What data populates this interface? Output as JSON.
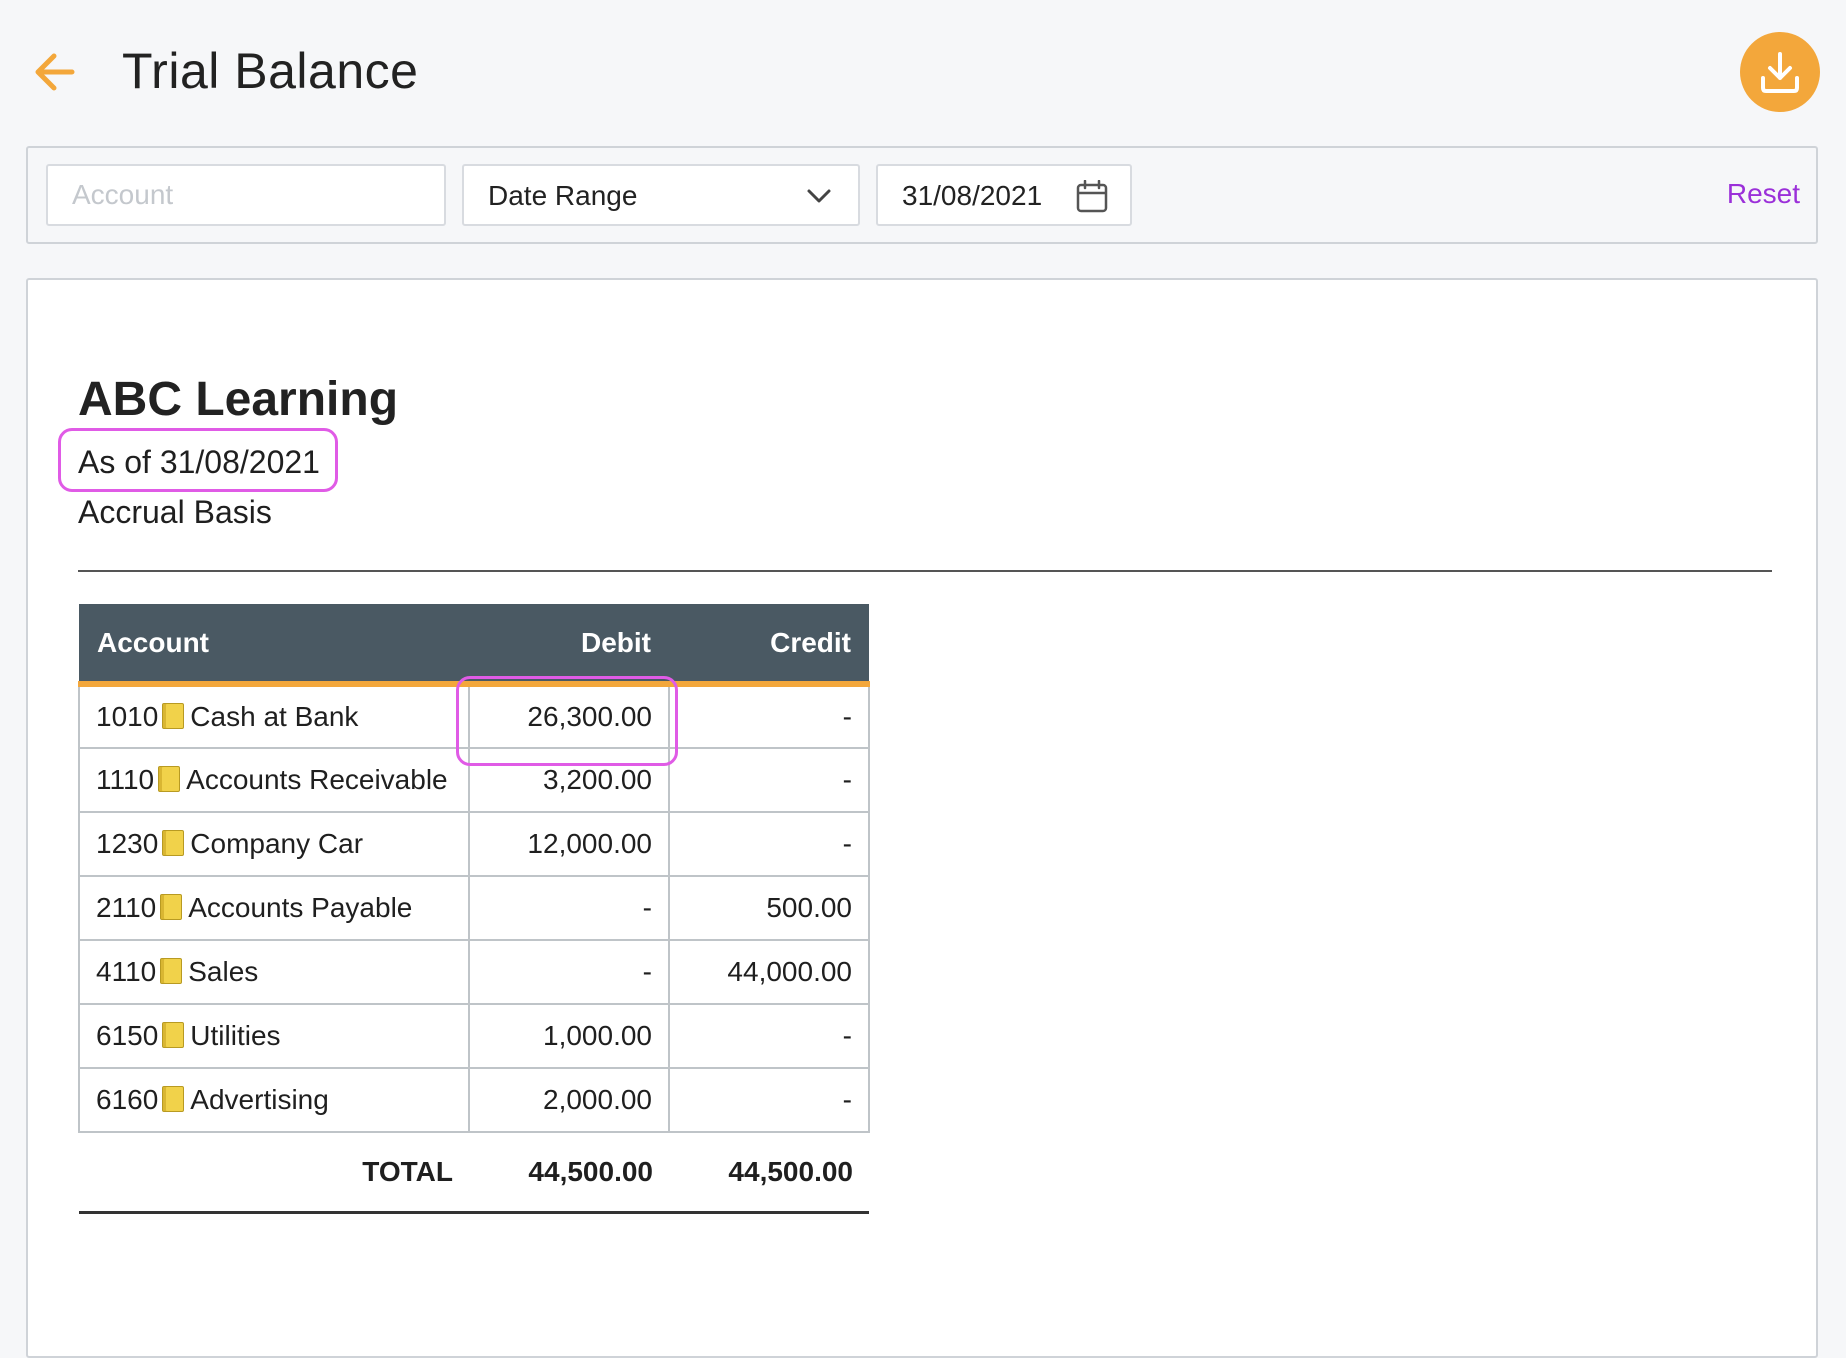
{
  "header": {
    "title": "Trial Balance",
    "back_icon": "arrow-left-icon",
    "download_icon": "download-icon",
    "accent_color": "#f3a73b"
  },
  "filters": {
    "account_placeholder": "Account",
    "account_value": "",
    "date_range_label": "Date Range",
    "date_value": "31/08/2021",
    "reset_label": "Reset",
    "reset_color": "#9b30d9"
  },
  "report": {
    "company": "ABC Learning",
    "as_of": "As of 31/08/2021",
    "basis": "Accrual Basis",
    "columns": {
      "account": "Account",
      "debit": "Debit",
      "credit": "Credit"
    },
    "rows": [
      {
        "code": "1010",
        "name": "Cash at Bank",
        "debit": "26,300.00",
        "credit": "-"
      },
      {
        "code": "1110",
        "name": "Accounts Receivable",
        "debit": "3,200.00",
        "credit": "-"
      },
      {
        "code": "1230",
        "name": "Company Car",
        "debit": "12,000.00",
        "credit": "-"
      },
      {
        "code": "2110",
        "name": "Accounts Payable",
        "debit": "-",
        "credit": "500.00"
      },
      {
        "code": "4110",
        "name": "Sales",
        "debit": "-",
        "credit": "44,000.00"
      },
      {
        "code": "6150",
        "name": "Utilities",
        "debit": "1,000.00",
        "credit": "-"
      },
      {
        "code": "6160",
        "name": "Advertising",
        "debit": "2,000.00",
        "credit": "-"
      }
    ],
    "total": {
      "label": "TOTAL",
      "debit": "44,500.00",
      "credit": "44,500.00"
    },
    "header_color": "#4a5963",
    "highlight_color": "#e05be6"
  }
}
